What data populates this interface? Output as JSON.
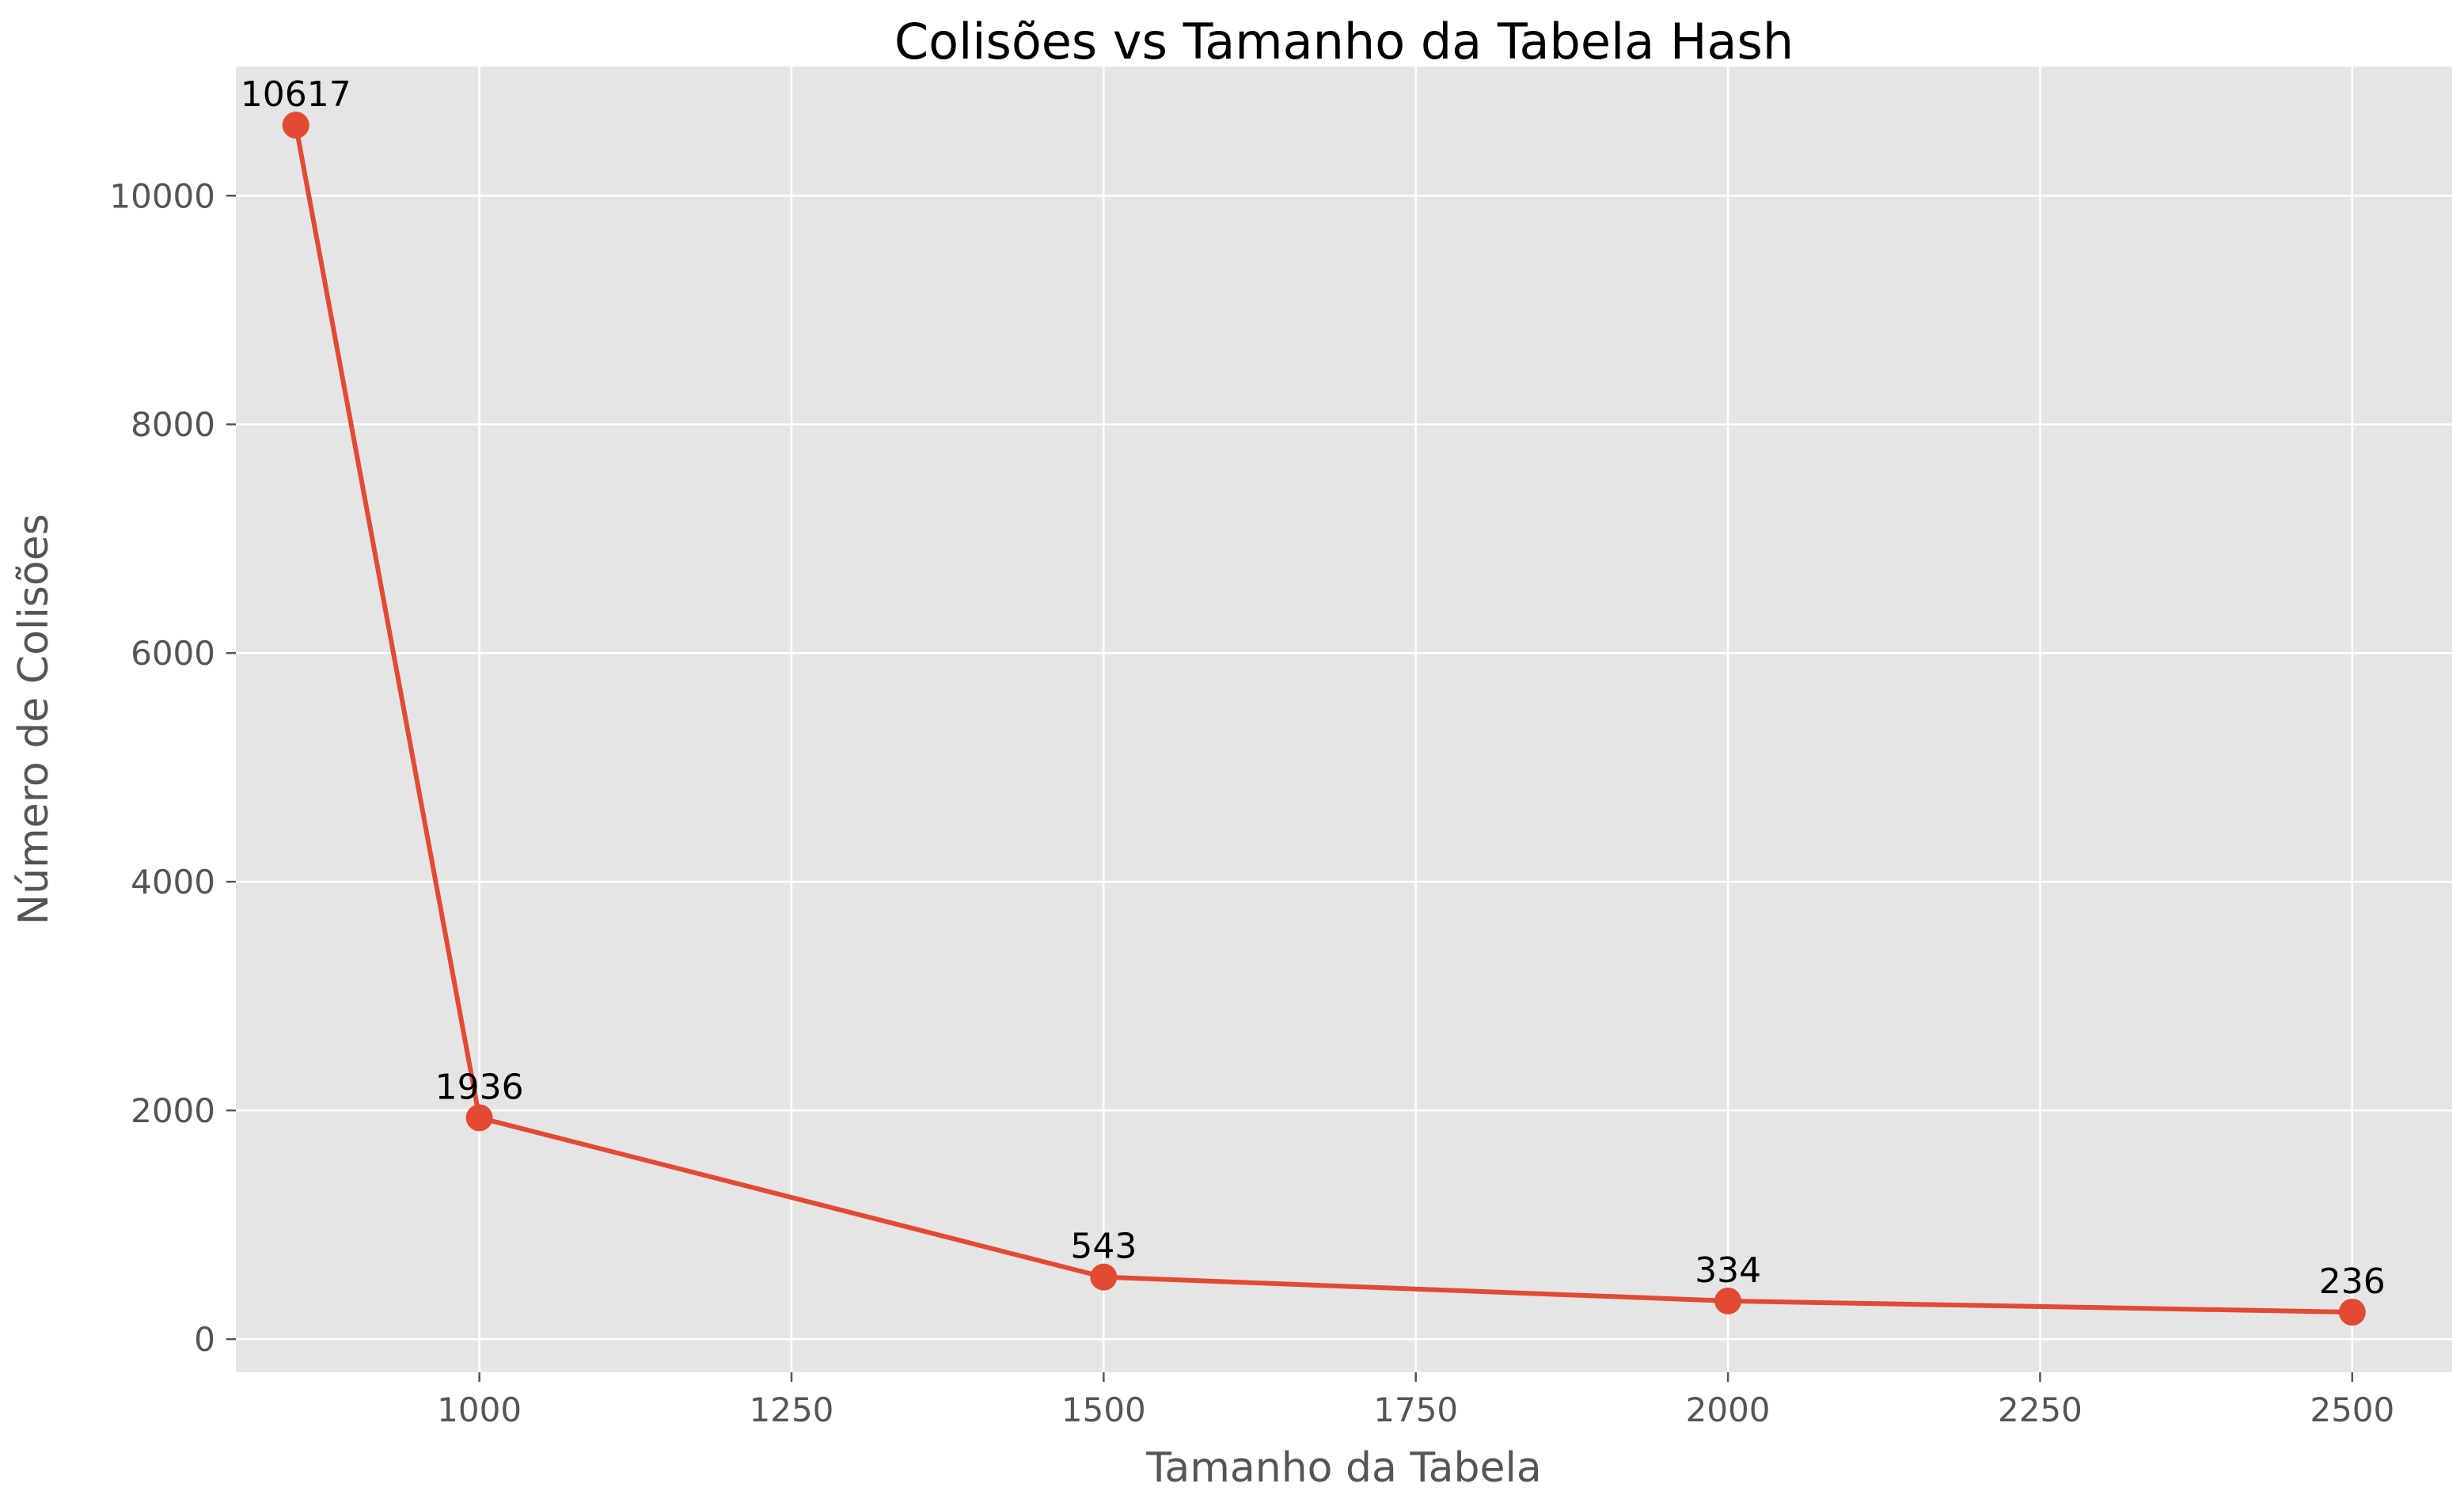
{
  "chart_data": {
    "type": "line",
    "title": "Colisões vs Tamanho da Tabela Hash",
    "xlabel": "Tamanho da Tabela",
    "ylabel": "Número de Colisões",
    "x": [
      853,
      1000,
      1500,
      2000,
      2500
    ],
    "series": [
      {
        "values": [
          10617,
          1936,
          543,
          334,
          236
        ]
      }
    ],
    "data_labels": [
      "10617",
      "1936",
      "543",
      "334",
      "236"
    ],
    "xlim": [
      805,
      2580
    ],
    "ylim": [
      -290,
      11130
    ],
    "xticks": [
      1000,
      1250,
      1500,
      1750,
      2000,
      2250,
      2500
    ],
    "xtick_labels": [
      "1000",
      "1250",
      "1500",
      "1750",
      "2000",
      "2250",
      "2500"
    ],
    "yticks": [
      0,
      2000,
      4000,
      6000,
      8000,
      10000
    ],
    "ytick_labels": [
      "0",
      "2000",
      "4000",
      "6000",
      "8000",
      "10000"
    ],
    "grid": true,
    "colors": {
      "background": "#E5E5E5",
      "line": "#E24A33",
      "grid": "#FFFFFF",
      "text": "#555555"
    }
  }
}
